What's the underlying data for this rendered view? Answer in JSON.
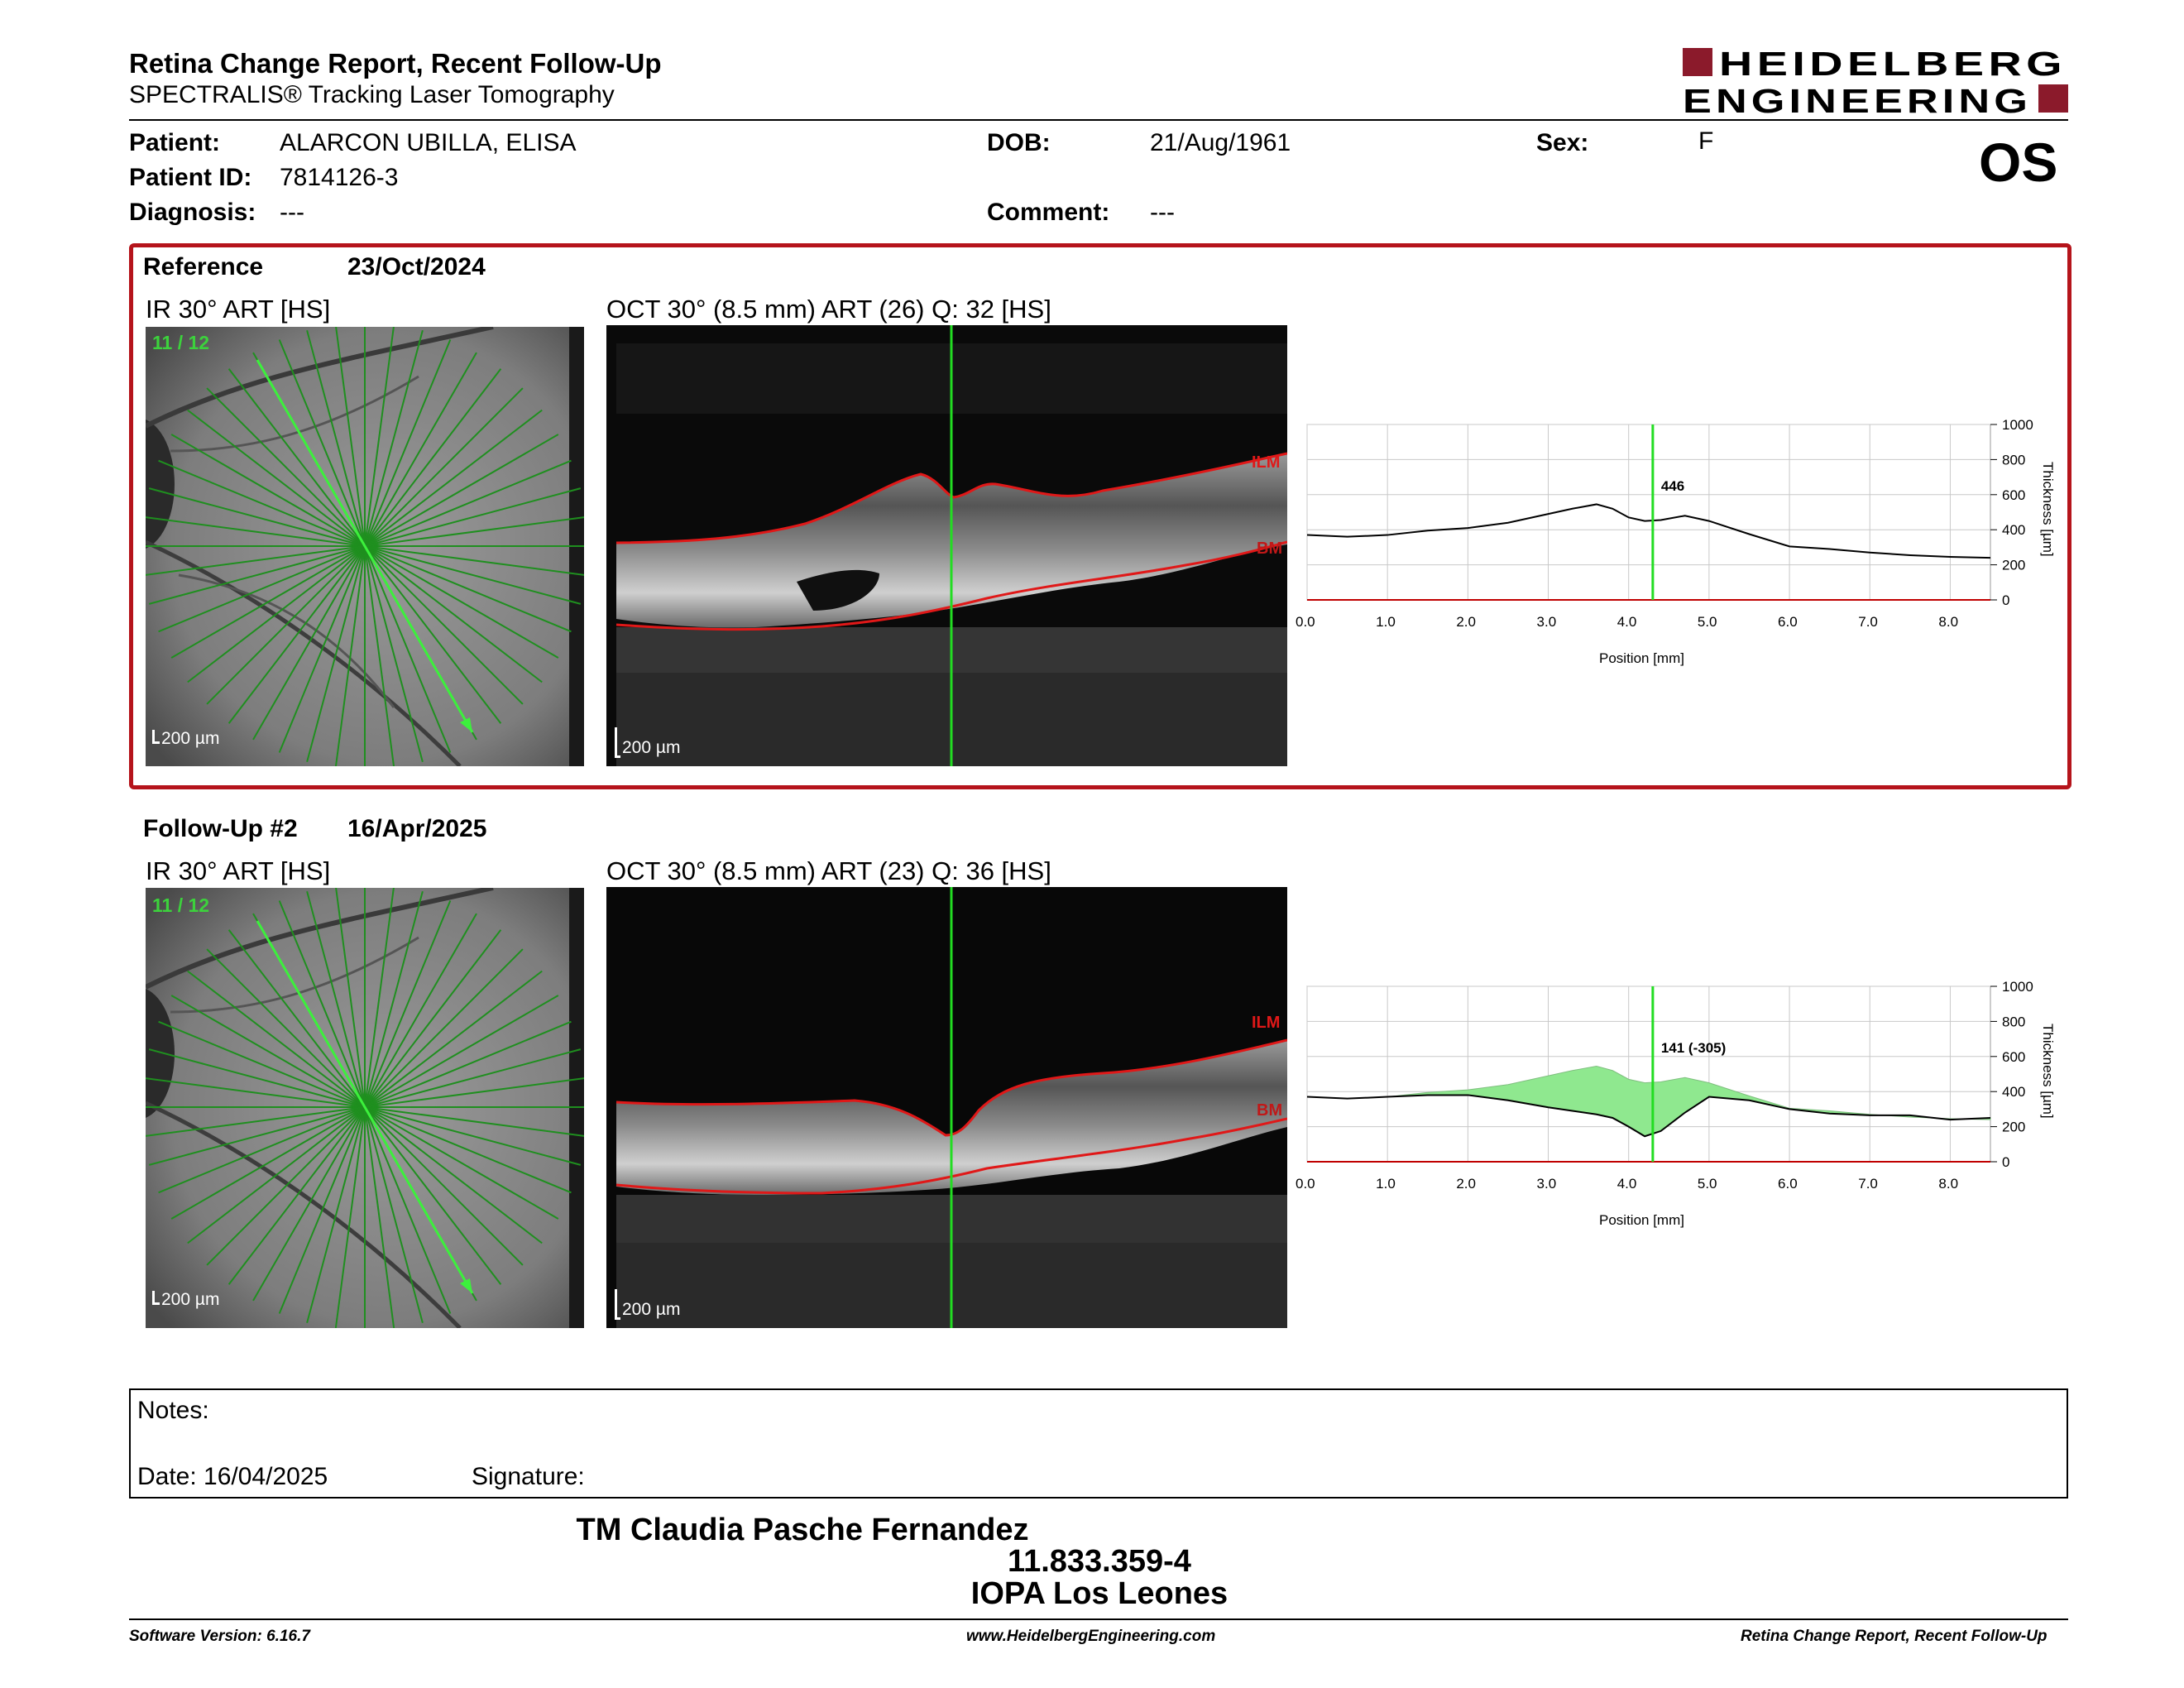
{
  "header": {
    "title": "Retina Change Report, Recent Follow-Up",
    "subtitle": "SPECTRALIS® Tracking Laser Tomography",
    "logo_line1": "HEIDELBERG",
    "logo_line2": "ENGINEERING",
    "brand_color": "#8b1a2b"
  },
  "patient": {
    "patient_label": "Patient:",
    "patient_value": "ALARCON UBILLA, ELISA",
    "id_label": "Patient ID:",
    "id_value": "7814126-3",
    "diag_label": "Diagnosis:",
    "diag_value": "---",
    "dob_label": "DOB:",
    "dob_value": "21/Aug/1961",
    "comment_label": "Comment:",
    "comment_value": "---",
    "sex_label": "Sex:",
    "sex_value": "F",
    "eye": "OS"
  },
  "reference": {
    "label": "Reference",
    "date": "23/Oct/2024",
    "ir_caption": "IR 30° ART [HS]",
    "oct_caption": "OCT 30° (8.5 mm) ART (26) Q: 32 [HS]",
    "scan_index": "11 / 12",
    "scale": "200 µm",
    "ilm": "ILM",
    "bm": "BM"
  },
  "followup": {
    "label": "Follow-Up #2",
    "date": "16/Apr/2025",
    "ir_caption": "IR 30° ART [HS]",
    "oct_caption": "OCT 30° (8.5 mm) ART (23) Q: 36 [HS]",
    "scan_index": "11 / 12",
    "scale": "200 µm",
    "ilm": "ILM",
    "bm": "BM"
  },
  "chart_data": [
    {
      "type": "line",
      "xlabel": "Position [mm]",
      "ylabel": "Thickness [µm]",
      "xlim": [
        0,
        8.5
      ],
      "ylim": [
        0,
        1000
      ],
      "x_ticks": [
        "0.0",
        "1.0",
        "2.0",
        "3.0",
        "4.0",
        "5.0",
        "6.0",
        "7.0",
        "8.0"
      ],
      "y_ticks": [
        "0",
        "200",
        "400",
        "600",
        "800",
        "1000"
      ],
      "cursor_x": 4.3,
      "cursor_label": "446",
      "series": [
        {
          "x": [
            0,
            0.5,
            1.0,
            1.5,
            2.0,
            2.5,
            3.0,
            3.3,
            3.6,
            3.8,
            4.0,
            4.2,
            4.4,
            4.7,
            5.0,
            5.5,
            6.0,
            6.5,
            7.0,
            7.5,
            8.0,
            8.5
          ],
          "y": [
            370,
            360,
            370,
            395,
            410,
            440,
            490,
            520,
            545,
            520,
            470,
            450,
            455,
            480,
            450,
            375,
            305,
            290,
            270,
            255,
            245,
            240
          ]
        }
      ]
    },
    {
      "type": "area",
      "xlabel": "Position [mm]",
      "ylabel": "Thickness [µm]",
      "xlim": [
        0,
        8.5
      ],
      "ylim": [
        0,
        1000
      ],
      "x_ticks": [
        "0.0",
        "1.0",
        "2.0",
        "3.0",
        "4.0",
        "5.0",
        "6.0",
        "7.0",
        "8.0"
      ],
      "y_ticks": [
        "0",
        "200",
        "400",
        "600",
        "800",
        "1000"
      ],
      "cursor_x": 4.3,
      "cursor_label": "141 (-305)",
      "fill_color": "#8fe88f",
      "series": [
        {
          "x": [
            0,
            0.5,
            1.0,
            1.5,
            2.0,
            2.5,
            3.0,
            3.3,
            3.6,
            3.8,
            4.0,
            4.2,
            4.4,
            4.7,
            5.0,
            5.5,
            6.0,
            6.5,
            7.0,
            7.5,
            8.0,
            8.5
          ],
          "y": [
            370,
            360,
            370,
            395,
            410,
            440,
            490,
            520,
            545,
            520,
            470,
            450,
            455,
            480,
            450,
            375,
            305,
            290,
            270,
            255,
            245,
            240
          ]
        },
        {
          "x": [
            0,
            0.5,
            1.0,
            1.5,
            2.0,
            2.5,
            3.0,
            3.3,
            3.6,
            3.8,
            4.0,
            4.2,
            4.4,
            4.7,
            5.0,
            5.5,
            6.0,
            6.5,
            7.0,
            7.5,
            8.0,
            8.5
          ],
          "y": [
            370,
            360,
            370,
            380,
            380,
            350,
            310,
            290,
            270,
            250,
            200,
            145,
            175,
            280,
            370,
            350,
            300,
            275,
            265,
            265,
            240,
            250
          ]
        }
      ]
    }
  ],
  "notes": {
    "notes_label": "Notes:",
    "date_label": "Date: 16/04/2025",
    "signature_label": "Signature:"
  },
  "signer": {
    "name": "TM Claudia Pasche Fernandez",
    "id": "11.833.359-4",
    "place": "IOPA Los Leones"
  },
  "footer": {
    "software": "Software Version: 6.16.7",
    "website": "www.HeidelbergEngineering.com",
    "report_name": "Retina Change Report, Recent Follow-Up"
  }
}
